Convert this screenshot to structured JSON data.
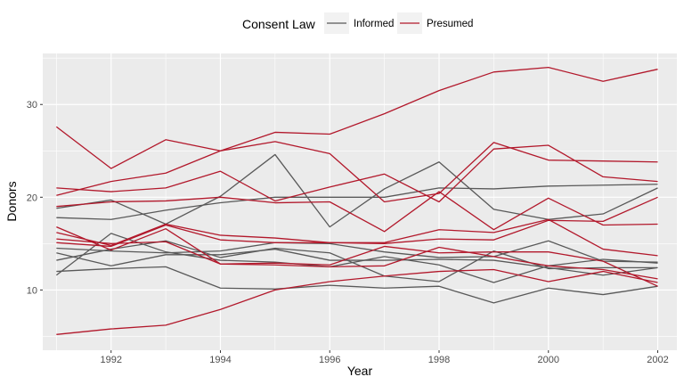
{
  "chart_data": {
    "type": "line",
    "xlabel": "Year",
    "ylabel": "Donors",
    "xlim": [
      1990.75,
      2002.35
    ],
    "ylim": [
      3.5,
      35.5
    ],
    "x_ticks": [
      1992,
      1994,
      1996,
      1998,
      2000,
      2002
    ],
    "y_ticks": [
      10,
      20,
      30
    ],
    "grid": true,
    "legend": {
      "title": "Consent Law",
      "placement": "top",
      "entries": [
        {
          "label": "Informed",
          "color": "#595959"
        },
        {
          "label": "Presumed",
          "color": "#b2182b"
        }
      ]
    },
    "x": [
      1991,
      1992,
      1993,
      1994,
      1995,
      1996,
      1997,
      1998,
      1999,
      2000,
      2001,
      2002
    ],
    "series": [
      {
        "law": "Presumed",
        "values": [
          27.6,
          23.1,
          26.2,
          25.0,
          27.0,
          26.8,
          29.0,
          31.5,
          33.5,
          34.0,
          32.5,
          33.8
        ]
      },
      {
        "law": "Presumed",
        "values": [
          20.2,
          21.7,
          22.6,
          25.0,
          26.0,
          24.7,
          19.5,
          20.4,
          25.9,
          24.0,
          23.9,
          23.8
        ]
      },
      {
        "law": "Presumed",
        "values": [
          21.0,
          20.6,
          21.0,
          22.8,
          19.6,
          21.1,
          22.5,
          19.5,
          25.2,
          25.6,
          22.2,
          21.7
        ]
      },
      {
        "law": "Presumed",
        "values": [
          19.0,
          19.5,
          19.6,
          20.0,
          19.4,
          19.5,
          16.3,
          20.6,
          16.5,
          19.9,
          17.0,
          17.1
        ]
      },
      {
        "law": "Presumed",
        "values": [
          16.2,
          14.8,
          17.1,
          15.9,
          15.6,
          15.1,
          15.1,
          16.5,
          16.2,
          17.6,
          14.4,
          13.7
        ]
      },
      {
        "law": "Presumed",
        "values": [
          15.5,
          15.0,
          15.2,
          12.8,
          12.9,
          12.7,
          14.7,
          14.0,
          14.1,
          14.1,
          13.1,
          10.4
        ]
      },
      {
        "law": "Presumed",
        "values": [
          15.1,
          14.7,
          17.0,
          15.4,
          15.1,
          15.1,
          15.0,
          15.5,
          15.4,
          17.5,
          17.4,
          20.0
        ]
      },
      {
        "law": "Presumed",
        "values": [
          16.8,
          14.3,
          16.6,
          12.8,
          12.7,
          12.5,
          12.6,
          14.6,
          13.6,
          12.6,
          12.2,
          11.2
        ]
      },
      {
        "law": "Presumed",
        "values": [
          5.2,
          5.8,
          6.2,
          7.9,
          10.0,
          10.9,
          11.5,
          12.0,
          12.2,
          10.9,
          12.0,
          10.8
        ]
      },
      {
        "law": "Informed",
        "values": [
          17.8,
          17.6,
          18.6,
          19.4,
          20.0,
          20.0,
          20.0,
          21.0,
          20.9,
          21.2,
          21.3,
          21.4
        ]
      },
      {
        "law": "Informed",
        "values": [
          18.8,
          19.7,
          17.1,
          20.1,
          24.6,
          16.8,
          20.9,
          23.8,
          18.7,
          17.6,
          18.2,
          21.0
        ]
      },
      {
        "law": "Informed",
        "values": [
          14.5,
          14.2,
          14.0,
          14.2,
          15.1,
          15.0,
          14.1,
          13.5,
          13.6,
          15.3,
          13.1,
          13.0
        ]
      },
      {
        "law": "Informed",
        "values": [
          13.2,
          14.4,
          15.3,
          13.5,
          14.5,
          14.0,
          11.5,
          10.9,
          14.2,
          12.3,
          12.4,
          12.4
        ]
      },
      {
        "law": "Informed",
        "values": [
          11.6,
          16.1,
          14.1,
          13.2,
          13.0,
          12.5,
          13.6,
          12.7,
          10.8,
          12.6,
          13.3,
          12.9
        ]
      },
      {
        "law": "Informed",
        "values": [
          12.0,
          12.3,
          12.5,
          10.2,
          10.1,
          10.5,
          10.2,
          10.4,
          8.6,
          10.2,
          9.5,
          10.4
        ]
      },
      {
        "law": "Informed",
        "values": [
          14.0,
          12.6,
          13.8,
          13.8,
          14.4,
          13.2,
          13.2,
          13.3,
          13.2,
          12.4,
          11.6,
          12.4
        ]
      }
    ]
  }
}
